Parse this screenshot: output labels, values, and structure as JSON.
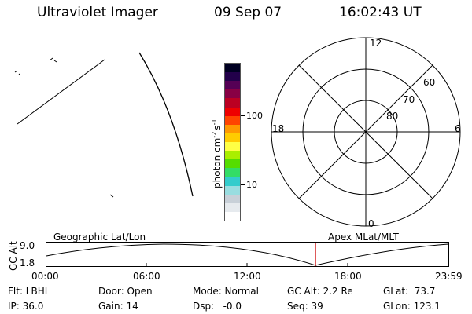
{
  "header": {
    "title": "Ultraviolet Imager",
    "date": "09 Sep 07",
    "time": "16:02:43 UT"
  },
  "colorbar": {
    "label_main": "photon cm",
    "label_sup1": "-2",
    "label_mid": "s",
    "label_sup2": "-1",
    "ticks": [
      "100",
      "10"
    ],
    "colors": [
      "#ffffff",
      "#e6eaee",
      "#c8d0d8",
      "#99dde0",
      "#33cccc",
      "#33dd66",
      "#55dd00",
      "#aaee00",
      "#ffff44",
      "#ffcc00",
      "#ff9900",
      "#ff4400",
      "#ee0000",
      "#bb0022",
      "#880044",
      "#550055",
      "#22004a",
      "#000022"
    ]
  },
  "polar": {
    "mlt_labels": {
      "top": "12",
      "left": "18",
      "right": "6",
      "bottom": "0"
    },
    "lat_labels": [
      "60",
      "70",
      "80"
    ]
  },
  "timeline": {
    "left_title": "Geographic Lat/Lon",
    "right_title": "Apex MLat/MLT",
    "y_label": "GC Alt",
    "y_ticks": [
      "9.0",
      "1.8"
    ],
    "x_ticks": [
      "00:00",
      "06:00",
      "12:00",
      "18:00",
      "23:59"
    ],
    "marker_color": "#cc0000"
  },
  "footer": {
    "filter": "Flt: LBHL",
    "door": "Door: Open",
    "mode": "Mode: Normal",
    "gc_alt": "GC Alt: 2.2 Re",
    "glat": "GLat:  73.7",
    "ip": "IP: 36.0",
    "gain": "Gain: 14",
    "dsp": "Dsp:   -0.0",
    "seq": "Seq: 39",
    "glon": "GLon: 123.1"
  }
}
